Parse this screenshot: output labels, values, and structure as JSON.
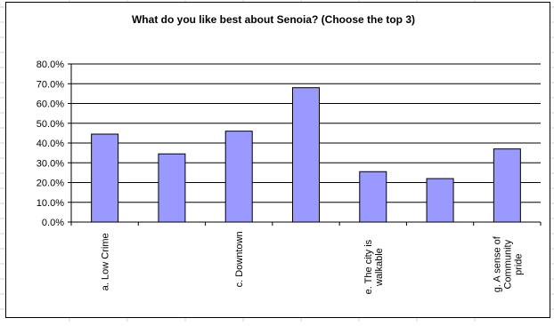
{
  "colors": {
    "bar_fill": "#9999ff",
    "bar_stroke": "#000000",
    "grid": "#000000",
    "sheet_grid": "#d4d4d4"
  },
  "chart_data": {
    "type": "bar",
    "title": "What do you like best about Senoia? (Choose the top 3)",
    "categories": [
      "a. Low Crime",
      "",
      "c. Downtown",
      "",
      "e. The city is walkable",
      "",
      "g. A sense of Community pride"
    ],
    "category_lines": [
      [
        "a. Low Crime"
      ],
      [],
      [
        "c. Downtown"
      ],
      [],
      [
        "e. The city is",
        "walkable"
      ],
      [],
      [
        "g. A sense of",
        "Community",
        "pride"
      ]
    ],
    "values": [
      44.5,
      34.5,
      46.0,
      68.0,
      25.5,
      22.0,
      37.0
    ],
    "ylim": [
      0,
      80
    ],
    "yticks": [
      "0.0%",
      "10.0%",
      "20.0%",
      "30.0%",
      "40.0%",
      "50.0%",
      "60.0%",
      "70.0%",
      "80.0%"
    ],
    "grid": true,
    "legend": "none"
  }
}
